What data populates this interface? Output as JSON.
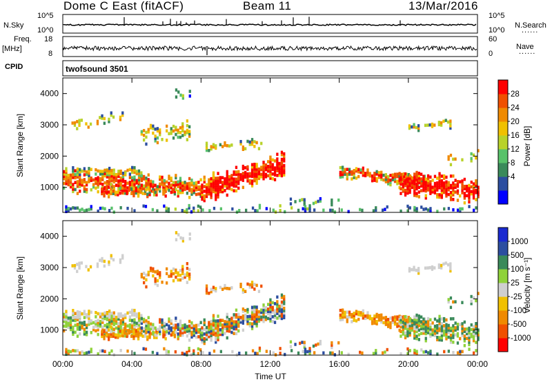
{
  "header": {
    "title": "Dome C East (fitACF)",
    "beam": "Beam 11",
    "date": "13/Mar/2016"
  },
  "strips": {
    "nsky_label": "N.Sky",
    "nsky_ticks": [
      "10^5",
      "10^0"
    ],
    "nsearch_label": "N.Search",
    "nsearch_ticks": [
      "10^5",
      "10^0"
    ],
    "freq_label_1": "Freq.",
    "freq_label_2": "[MHz]",
    "freq_ticks": [
      "18",
      "8"
    ],
    "nave_label": "Nave",
    "nave_ticks": [
      "60",
      "0"
    ],
    "cpid_label": "CPID",
    "cpid_value": "twofsound 3501",
    "dots": "......"
  },
  "chart_data": [
    {
      "type": "heatmap",
      "name": "power",
      "ylabel": "Slant Range [km]",
      "ylim": [
        200,
        4500
      ],
      "yticks": [
        1000,
        2000,
        3000,
        4000
      ],
      "xlabel": "Time UT",
      "xlim": [
        0,
        24
      ],
      "xticks": [
        "00:00",
        "04:00",
        "08:00",
        "12:00",
        "16:00",
        "20:00",
        "00:00"
      ],
      "colorbar": {
        "label": "Power [dB]",
        "ticks": [
          "28",
          "24",
          "20",
          "16",
          "12",
          "8",
          "4"
        ],
        "colors": [
          "#0000ff",
          "#2c4ea0",
          "#3a8a5a",
          "#58c26a",
          "#b8d22a",
          "#f0c000",
          "#f08a00",
          "#f05000",
          "#ff0000"
        ]
      }
    },
    {
      "type": "heatmap",
      "name": "velocity",
      "ylabel": "Slant Range [km]",
      "ylim": [
        200,
        4500
      ],
      "yticks": [
        1000,
        2000,
        3000,
        4000
      ],
      "xlabel": "Time UT",
      "xlim": [
        0,
        24
      ],
      "xticks": [
        "00:00",
        "04:00",
        "08:00",
        "12:00",
        "16:00",
        "20:00",
        "00:00"
      ],
      "colorbar": {
        "label": "Velocity [m s⁻¹]",
        "ticks": [
          "1000",
          "500",
          "100",
          "25",
          "-25",
          "-100",
          "-500",
          "-1000"
        ],
        "colors": [
          "#ff0000",
          "#f05000",
          "#f08a00",
          "#f0c000",
          "#cfcfcf",
          "#8fd23a",
          "#3a8a5a",
          "#2c4ea0",
          "#1a2ad0"
        ]
      }
    }
  ]
}
